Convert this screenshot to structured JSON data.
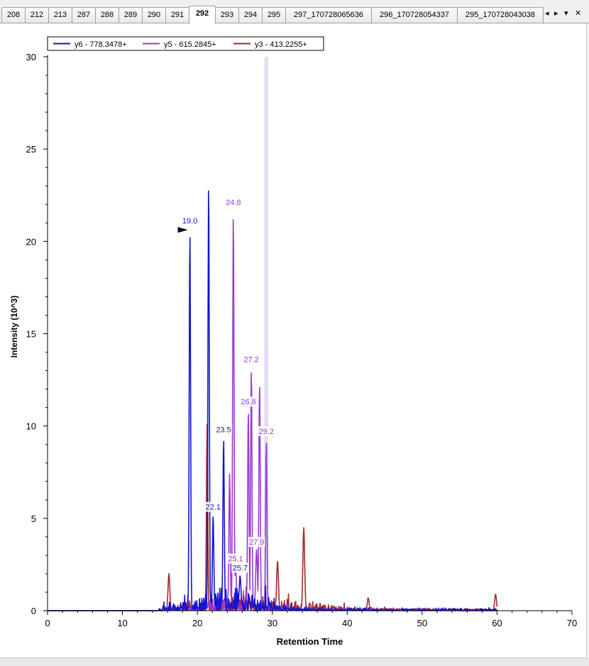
{
  "tabs": [
    {
      "label": "208",
      "active": false
    },
    {
      "label": "212",
      "active": false
    },
    {
      "label": "213",
      "active": false
    },
    {
      "label": "287",
      "active": false
    },
    {
      "label": "288",
      "active": false
    },
    {
      "label": "289",
      "active": false
    },
    {
      "label": "290",
      "active": false
    },
    {
      "label": "291",
      "active": false
    },
    {
      "label": "292",
      "active": true
    },
    {
      "label": "293",
      "active": false
    },
    {
      "label": "294",
      "active": false
    },
    {
      "label": "295",
      "active": false
    },
    {
      "label": "297_170728065636",
      "active": false
    },
    {
      "label": "296_170728054337",
      "active": false
    },
    {
      "label": "295_170728043038",
      "active": false
    }
  ],
  "tab_controls": {
    "prev_icon": "◂",
    "next_icon": "▸",
    "menu_icon": "▾",
    "close_icon": "✕"
  },
  "chart_data": {
    "type": "line",
    "xlabel": "Retention Time",
    "ylabel": "Intensity (10^3)",
    "xlim": [
      0,
      70
    ],
    "ylim": [
      0,
      30
    ],
    "x_ticks": [
      0,
      10,
      20,
      30,
      40,
      50,
      60,
      70
    ],
    "y_ticks": [
      0,
      5,
      10,
      15,
      20,
      25,
      30
    ],
    "grid": false,
    "legend_position": "top-left",
    "series": [
      {
        "name": "y6 - 778.3478+",
        "color": "#1414d2",
        "peaks": [
          {
            "x": 19.0,
            "y": 20.7,
            "label": "19.0"
          },
          {
            "x": 21.5,
            "y": 23.3,
            "label": ""
          },
          {
            "x": 22.1,
            "y": 5.2,
            "label": "22.1"
          },
          {
            "x": 23.5,
            "y": 9.4,
            "label": "23.5"
          },
          {
            "x": 25.7,
            "y": 1.9,
            "label": "25.7"
          }
        ]
      },
      {
        "name": "y5 - 615.2845+",
        "color": "#9a3ad2",
        "peaks": [
          {
            "x": 24.8,
            "y": 21.7,
            "label": "24.8"
          },
          {
            "x": 27.2,
            "y": 13.2,
            "label": "27.2"
          },
          {
            "x": 26.8,
            "y": 10.9,
            "label": "26.8"
          },
          {
            "x": 29.2,
            "y": 9.3,
            "label": "29.2"
          },
          {
            "x": 25.1,
            "y": 2.4,
            "label": "25.1"
          },
          {
            "x": 27.9,
            "y": 3.3,
            "label": "27.9"
          },
          {
            "x": 28.3,
            "y": 12.4,
            "label": ""
          },
          {
            "x": 24.3,
            "y": 7.4,
            "label": ""
          }
        ]
      },
      {
        "name": "y3 - 413.2255+",
        "color": "#a52a2a",
        "peaks": [
          {
            "x": 21.3,
            "y": 10.1,
            "label": ""
          },
          {
            "x": 16.2,
            "y": 2.0,
            "label": ""
          },
          {
            "x": 34.2,
            "y": 4.5,
            "label": ""
          },
          {
            "x": 30.7,
            "y": 2.7,
            "label": ""
          },
          {
            "x": 59.8,
            "y": 0.9,
            "label": ""
          },
          {
            "x": 42.8,
            "y": 0.7,
            "label": ""
          }
        ]
      }
    ],
    "selected_rt": 29.2,
    "marker_rt": 19.0
  }
}
